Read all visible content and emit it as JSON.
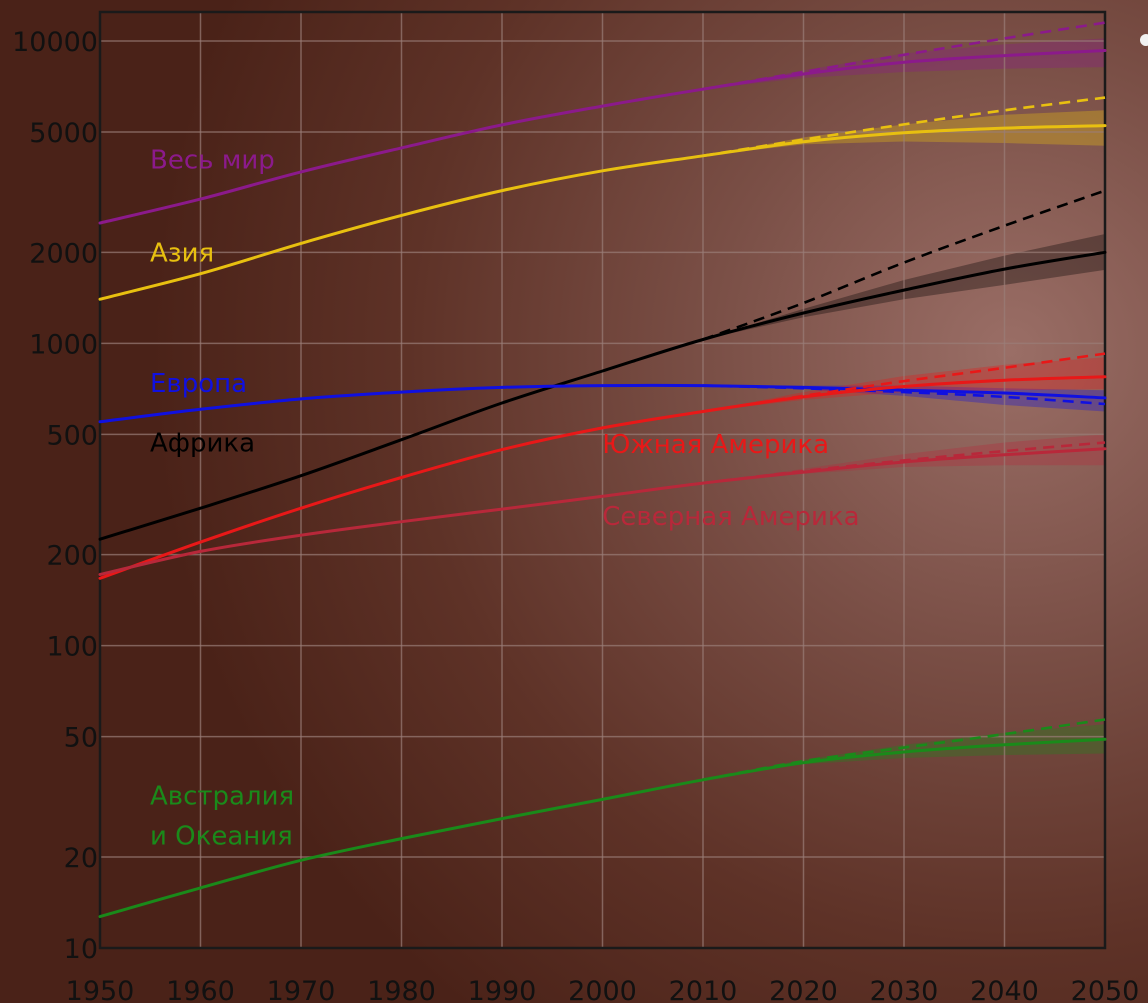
{
  "chart_data": {
    "type": "line",
    "title": "",
    "xlabel": "",
    "ylabel": "",
    "y_scale": "log",
    "xlim": [
      1950,
      2050
    ],
    "ylim": [
      10,
      12000
    ],
    "grid": true,
    "background": "#6b3d33",
    "x_ticks": [
      "1950",
      "1960",
      "1970",
      "1980",
      "1990",
      "2000",
      "2010",
      "2020",
      "2030",
      "2040",
      "2050"
    ],
    "y_ticks": [
      {
        "value": 10,
        "label": "10"
      },
      {
        "value": 20,
        "label": "20"
      },
      {
        "value": 50,
        "label": "50"
      },
      {
        "value": 100,
        "label": "100"
      },
      {
        "value": 200,
        "label": "200"
      },
      {
        "value": 500,
        "label": "500"
      },
      {
        "value": 1000,
        "label": "1000"
      },
      {
        "value": 2000,
        "label": "2000"
      },
      {
        "value": 5000,
        "label": "5000"
      },
      {
        "value": 10000,
        "label": "10000"
      }
    ],
    "series": [
      {
        "name": "Весь мир",
        "color": "#8b1a8b",
        "label_anchor": {
          "x": 1950,
          "y": 4050
        },
        "x": [
          1950,
          1960,
          1970,
          1980,
          1990,
          2000,
          2010,
          2020,
          2030,
          2040,
          2050
        ],
        "values": [
          2500,
          3000,
          3690,
          4430,
          5280,
          6090,
          6930,
          7780,
          8500,
          8950,
          9300
        ],
        "projection_high": {
          "x": [
            2010,
            2020,
            2030,
            2040,
            2050
          ],
          "values": [
            6930,
            7900,
            9000,
            10200,
            11500
          ]
        },
        "band": {
          "x": [
            2010,
            2020,
            2030,
            2040,
            2050
          ],
          "low": [
            6930,
            7550,
            7900,
            8100,
            8200
          ],
          "high": [
            6930,
            8000,
            9100,
            9750,
            10200
          ]
        }
      },
      {
        "name": "Азия",
        "color": "#e8c010",
        "label_anchor": {
          "x": 1950,
          "y": 2000
        },
        "x": [
          1950,
          1960,
          1970,
          1980,
          1990,
          2000,
          2010,
          2020,
          2030,
          2040,
          2050
        ],
        "values": [
          1400,
          1700,
          2140,
          2650,
          3200,
          3720,
          4170,
          4640,
          4970,
          5150,
          5250
        ],
        "projection_high": {
          "x": [
            2010,
            2020,
            2030,
            2040,
            2050
          ],
          "values": [
            4170,
            4720,
            5300,
            5900,
            6500
          ]
        },
        "band": {
          "x": [
            2010,
            2020,
            2030,
            2040,
            2050
          ],
          "low": [
            4170,
            4550,
            4650,
            4600,
            4500
          ],
          "high": [
            4170,
            4800,
            5300,
            5700,
            5900
          ]
        }
      },
      {
        "name": "Африка",
        "color": "#000000",
        "label_anchor": {
          "x": 1950,
          "y": 470
        },
        "x": [
          1950,
          1960,
          1970,
          1980,
          1990,
          2000,
          2010,
          2020,
          2030,
          2040,
          2050
        ],
        "values": [
          225,
          285,
          365,
          480,
          635,
          810,
          1030,
          1260,
          1500,
          1760,
          2000
        ],
        "projection_high": {
          "x": [
            2010,
            2020,
            2030,
            2040,
            2050
          ],
          "values": [
            1030,
            1360,
            1850,
            2450,
            3200
          ]
        },
        "band": {
          "x": [
            2010,
            2020,
            2030,
            2040,
            2050
          ],
          "low": [
            1030,
            1220,
            1400,
            1560,
            1750
          ],
          "high": [
            1030,
            1300,
            1620,
            1950,
            2300
          ]
        }
      },
      {
        "name": "Европа",
        "color": "#1010e0",
        "label_anchor": {
          "x": 1950,
          "y": 740
        },
        "x": [
          1950,
          1960,
          1970,
          1980,
          1990,
          2000,
          2010,
          2020,
          2030,
          2040,
          2050
        ],
        "values": [
          550,
          605,
          655,
          690,
          715,
          725,
          725,
          715,
          700,
          685,
          660
        ],
        "projection_high": {
          "x": [
            2010,
            2020,
            2030,
            2040,
            2050
          ],
          "values": [
            725,
            710,
            690,
            665,
            630
          ]
        },
        "band": {
          "x": [
            2010,
            2020,
            2030,
            2040,
            2050
          ],
          "low": [
            725,
            705,
            670,
            625,
            595
          ],
          "high": [
            725,
            725,
            725,
            710,
            700
          ]
        }
      },
      {
        "name": "Южная Америка",
        "color": "#e81818",
        "label_anchor": {
          "x": 1995,
          "y": 465
        },
        "x": [
          1950,
          1960,
          1970,
          1980,
          1990,
          2000,
          2010,
          2020,
          2030,
          2040,
          2050
        ],
        "values": [
          167,
          220,
          285,
          360,
          445,
          525,
          595,
          665,
          720,
          755,
          775
        ],
        "projection_high": {
          "x": [
            2010,
            2020,
            2030,
            2040,
            2050
          ],
          "values": [
            595,
            670,
            750,
            830,
            925
          ]
        },
        "band": {
          "x": [
            2010,
            2020,
            2030,
            2040,
            2050
          ],
          "low": [
            595,
            650,
            690,
            700,
            705
          ],
          "high": [
            595,
            690,
            780,
            850,
            900
          ]
        }
      },
      {
        "name": "Северная Америка",
        "color": "#b8283a",
        "label_anchor": {
          "x": 1995,
          "y": 268
        },
        "x": [
          1950,
          1960,
          1970,
          1980,
          1990,
          2000,
          2010,
          2020,
          2030,
          2040,
          2050
        ],
        "values": [
          172,
          205,
          232,
          257,
          283,
          312,
          345,
          375,
          405,
          428,
          448
        ],
        "projection_high": {
          "x": [
            2010,
            2020,
            2030,
            2040,
            2050
          ],
          "values": [
            345,
            378,
            410,
            440,
            470
          ]
        },
        "band": {
          "x": [
            2010,
            2020,
            2030,
            2040,
            2050
          ],
          "low": [
            345,
            370,
            390,
            395,
            395
          ],
          "high": [
            345,
            385,
            430,
            470,
            500
          ]
        }
      },
      {
        "name": "Австралия\nи Океания",
        "color": "#1a8a1a",
        "label_anchor": {
          "x": 1950,
          "y": 32
        },
        "x": [
          1950,
          1960,
          1970,
          1980,
          1990,
          2000,
          2010,
          2020,
          2030,
          2040,
          2050
        ],
        "values": [
          12.7,
          15.8,
          19.5,
          23,
          26.8,
          31,
          36,
          41,
          44.5,
          47,
          49
        ],
        "projection_high": {
          "x": [
            2010,
            2020,
            2030,
            2040,
            2050
          ],
          "values": [
            36,
            41.5,
            46,
            51,
            57
          ]
        },
        "band": {
          "x": [
            2010,
            2020,
            2030,
            2040,
            2050
          ],
          "low": [
            36,
            40.5,
            42.5,
            43.5,
            44
          ],
          "high": [
            36,
            42,
            47,
            51.5,
            55
          ]
        }
      }
    ]
  }
}
